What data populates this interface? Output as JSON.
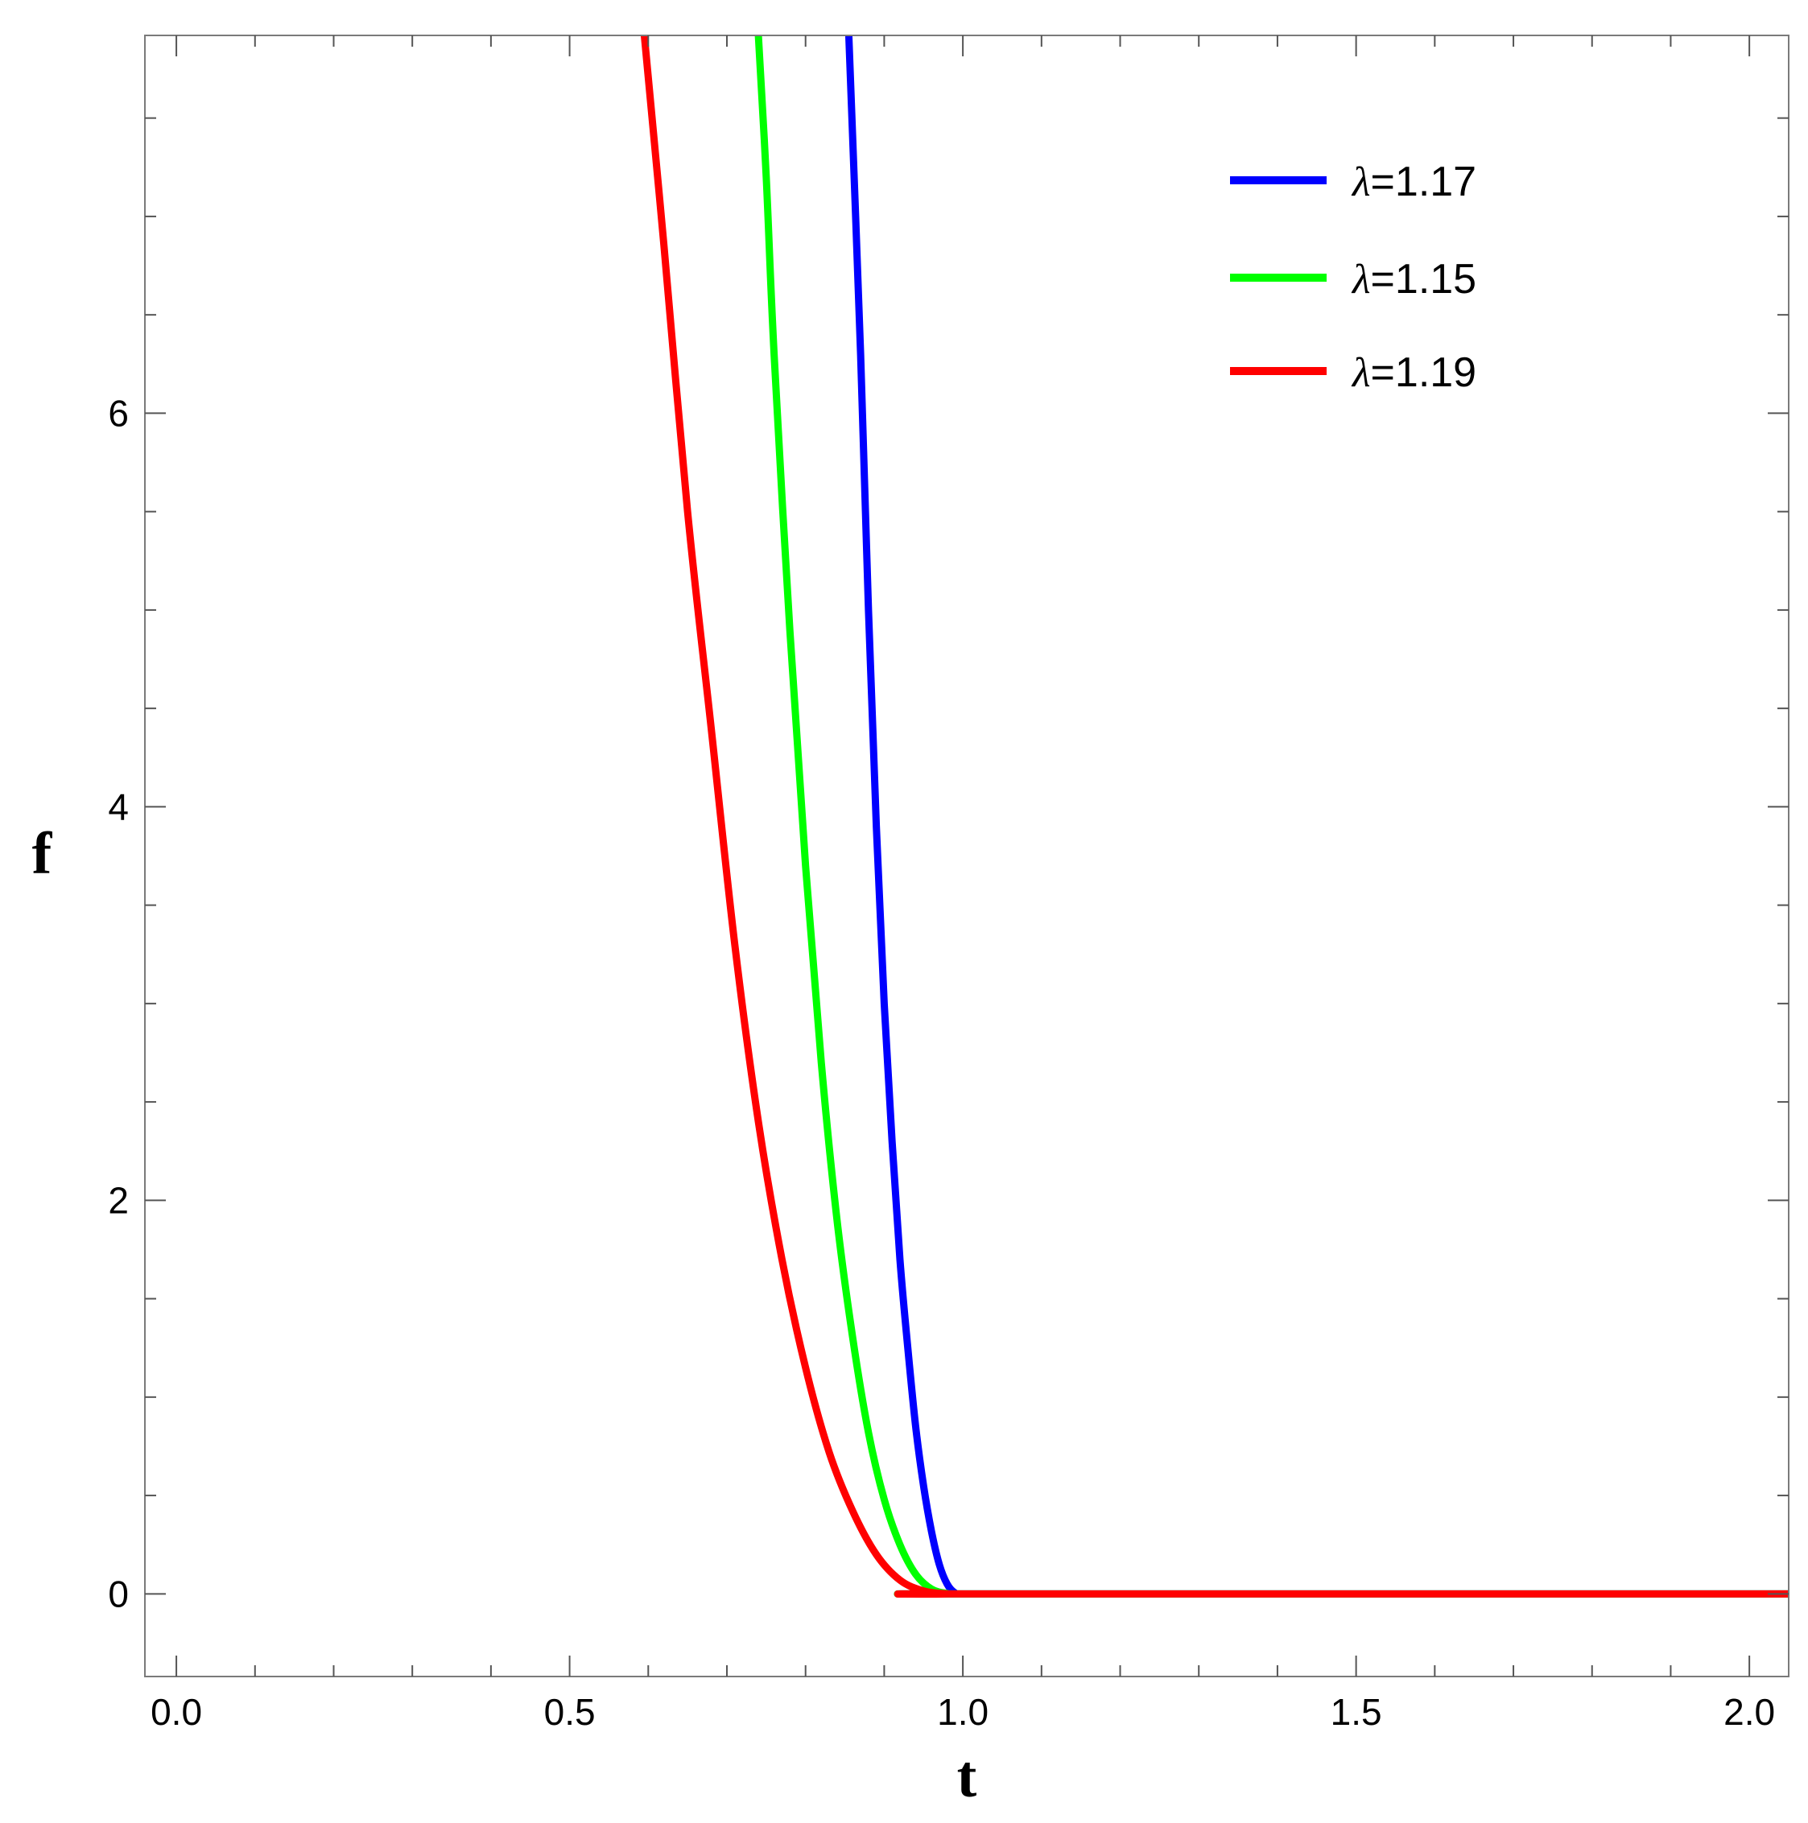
{
  "chart_data": {
    "type": "line",
    "title": "",
    "xlabel": "t",
    "ylabel": "f",
    "xlim": [
      -0.04,
      2.05
    ],
    "ylim": [
      -0.42,
      7.92
    ],
    "x_ticks_major": [
      0.0,
      0.5,
      1.0,
      1.5,
      2.0
    ],
    "x_tick_labels": [
      "0.0",
      "0.5",
      "1.0",
      "1.5",
      "2.0"
    ],
    "y_ticks_major": [
      0,
      2,
      4,
      6
    ],
    "y_tick_labels": [
      "0",
      "2",
      "4",
      "6"
    ],
    "x_minor_step": 0.1,
    "y_minor_step": 0.5,
    "grid": false,
    "legend_position": "top-right",
    "legend_symbol": "λ",
    "series": [
      {
        "name": "=1.17",
        "color": "#0000ff",
        "points": [
          [
            0.855,
            7.92
          ],
          [
            0.87,
            6.3
          ],
          [
            0.88,
            5.0
          ],
          [
            0.89,
            3.9
          ],
          [
            0.9,
            3.0
          ],
          [
            0.91,
            2.3
          ],
          [
            0.92,
            1.7
          ],
          [
            0.93,
            1.25
          ],
          [
            0.94,
            0.85
          ],
          [
            0.95,
            0.55
          ],
          [
            0.96,
            0.32
          ],
          [
            0.97,
            0.15
          ],
          [
            0.98,
            0.05
          ],
          [
            0.99,
            0.005
          ],
          [
            1.0,
            0
          ],
          [
            2.05,
            0
          ]
        ]
      },
      {
        "name": "=1.15",
        "color": "#00ff00",
        "points": [
          [
            0.74,
            7.92
          ],
          [
            0.75,
            7.2
          ],
          [
            0.76,
            6.3
          ],
          [
            0.78,
            4.9
          ],
          [
            0.8,
            3.7
          ],
          [
            0.82,
            2.7
          ],
          [
            0.84,
            1.9
          ],
          [
            0.86,
            1.3
          ],
          [
            0.88,
            0.82
          ],
          [
            0.9,
            0.48
          ],
          [
            0.92,
            0.25
          ],
          [
            0.94,
            0.1
          ],
          [
            0.96,
            0.025
          ],
          [
            0.98,
            0.002
          ],
          [
            1.0,
            0
          ],
          [
            2.05,
            0
          ]
        ]
      },
      {
        "name": "=1.19",
        "color": "#ff0000",
        "points": [
          [
            0.595,
            7.92
          ],
          [
            0.62,
            6.85
          ],
          [
            0.65,
            5.5
          ],
          [
            0.68,
            4.4
          ],
          [
            0.71,
            3.3
          ],
          [
            0.74,
            2.4
          ],
          [
            0.77,
            1.7
          ],
          [
            0.8,
            1.15
          ],
          [
            0.83,
            0.72
          ],
          [
            0.86,
            0.42
          ],
          [
            0.89,
            0.2
          ],
          [
            0.92,
            0.07
          ],
          [
            0.95,
            0.015
          ],
          [
            0.98,
            0.0
          ],
          [
            1.0,
            0
          ],
          [
            2.05,
            0
          ]
        ]
      }
    ]
  }
}
